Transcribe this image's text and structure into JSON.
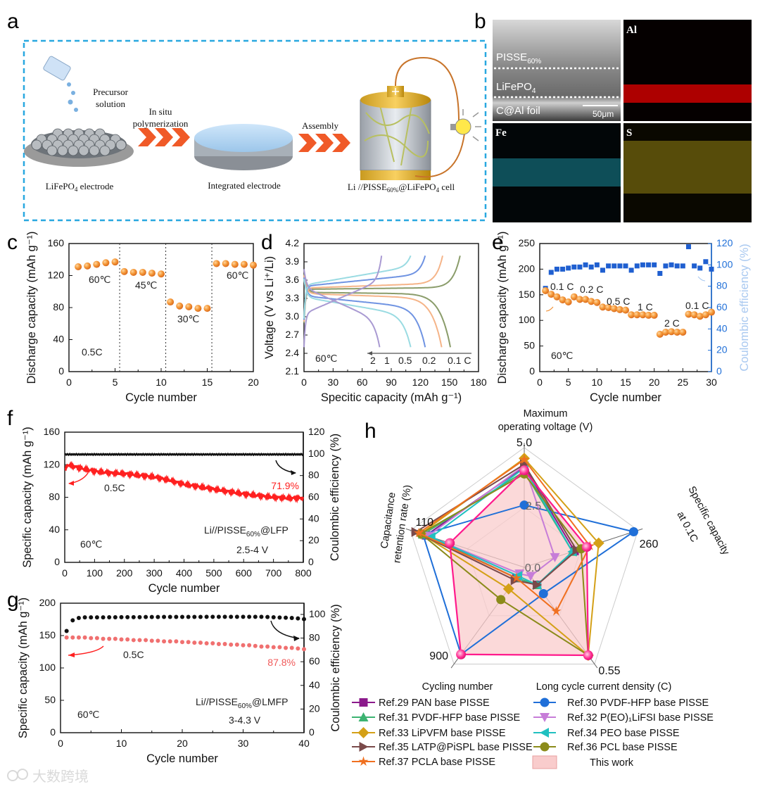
{
  "panel_labels": {
    "a": "a",
    "b": "b",
    "c": "c",
    "d": "d",
    "e": "e",
    "f": "f",
    "g": "g",
    "h": "h"
  },
  "panel_a": {
    "precursor_line1": "Precursor",
    "precursor_line2": "solution",
    "step1_line1": "In situ",
    "step1_line2": "polymerization",
    "step2": "Assembly",
    "electrode_label": {
      "pre": "LiFePO",
      "sub": "4",
      "post": " electrode"
    },
    "integrated_label": "Integrated electrode",
    "cell_label": {
      "pre": "Li //PISSE",
      "sub": "60%",
      "mid": "@LiFePO",
      "sub2": "4",
      "post": " cell"
    },
    "colors": {
      "box": "#29a8e0",
      "arrow": "#f05a28"
    }
  },
  "panel_b": {
    "layer1": {
      "pre": "PISSE",
      "sub": "60%"
    },
    "layer2": {
      "pre": "LiFePO",
      "sub": "4"
    },
    "layer3": "C@Al foil",
    "scale_bar": "50μm",
    "map_al": "Al",
    "map_fe": "Fe",
    "map_s": "S"
  },
  "watermark": "大数跨境",
  "chart_data": [
    {
      "panel": "c",
      "type": "scatter",
      "xlabel": "Cycle number",
      "ylabel": "Discharge capacity (mAh g⁻¹)",
      "xlim": [
        0,
        20
      ],
      "ylim": [
        0,
        160
      ],
      "x_ticks": [
        "0",
        "5",
        "10",
        "15",
        "20"
      ],
      "y_ticks": [
        "0",
        "40",
        "80",
        "120",
        "160"
      ],
      "x": [
        1,
        2,
        3,
        4,
        5,
        6,
        7,
        8,
        9,
        10,
        11,
        12,
        13,
        14,
        15,
        16,
        17,
        18,
        19,
        20
      ],
      "values": [
        131,
        132,
        134,
        136,
        137,
        125,
        124,
        124,
        123,
        122,
        87,
        82,
        81,
        79,
        79,
        135,
        135,
        134,
        134,
        133
      ],
      "dividers": [
        5.5,
        10.5,
        15.5
      ],
      "annotations": {
        "t1": "60℃",
        "t2": "45℃",
        "t3": "30℃",
        "t4": "60℃",
        "rate": "0.5C"
      },
      "color": "#f08a2a"
    },
    {
      "panel": "d",
      "type": "line",
      "xlabel": "Specitic capacity (mAh g⁻¹)",
      "ylabel": "Voltage (V vs Li⁺/Li)",
      "xlim": [
        0,
        180
      ],
      "ylim": [
        2.1,
        4.2
      ],
      "x_ticks": [
        "0",
        "30",
        "60",
        "90",
        "120",
        "150",
        "180"
      ],
      "y_ticks": [
        "2.1",
        "2.4",
        "2.7",
        "3.0",
        "3.3",
        "3.6",
        "3.9",
        "4.2"
      ],
      "series": [
        {
          "name": "0.1 C",
          "color": "#8a9c6a",
          "charge_capacity": 161,
          "discharge_capacity": 151,
          "charge_plateau": 3.45,
          "discharge_plateau": 3.4,
          "slope": 0.03
        },
        {
          "name": "0.2",
          "color": "#f5b488",
          "charge_capacity": 143,
          "discharge_capacity": 142,
          "charge_plateau": 3.47,
          "discharge_plateau": 3.38,
          "slope": 0.08
        },
        {
          "name": "0.5",
          "color": "#6f93e2",
          "charge_capacity": 125,
          "discharge_capacity": 125,
          "charge_plateau": 3.5,
          "discharge_plateau": 3.34,
          "slope": 0.2
        },
        {
          "name": "1",
          "color": "#9adbe2",
          "charge_capacity": 110,
          "discharge_capacity": 110,
          "charge_plateau": 3.52,
          "discharge_plateau": 3.32,
          "slope": 0.3
        },
        {
          "name": "2",
          "color": "#a99ad2",
          "charge_capacity": 80,
          "discharge_capacity": 78,
          "charge_plateau": 3.05,
          "discharge_plateau": 3.48,
          "slope": 0.55
        }
      ],
      "annotations": {
        "temp": "60℃"
      }
    },
    {
      "panel": "e",
      "type": "scatter",
      "xlabel": "Cycle number",
      "ylabel": "Discharge capacity (mAh g⁻¹)",
      "y2label": "Coulombic efficiency (%)",
      "xlim": [
        0,
        30
      ],
      "ylim": [
        0,
        250
      ],
      "y2lim": [
        0,
        120
      ],
      "x_ticks": [
        "0",
        "5",
        "10",
        "15",
        "20",
        "25",
        "30"
      ],
      "y_ticks": [
        "0",
        "50",
        "100",
        "150",
        "200",
        "250"
      ],
      "y2_ticks": [
        "0",
        "20",
        "40",
        "60",
        "80",
        "100",
        "120"
      ],
      "x": [
        1,
        2,
        3,
        4,
        5,
        6,
        7,
        8,
        9,
        10,
        11,
        12,
        13,
        14,
        15,
        16,
        17,
        18,
        19,
        20,
        21,
        22,
        23,
        24,
        25,
        26,
        27,
        28,
        29,
        30
      ],
      "capacity": [
        158,
        151,
        146,
        140,
        136,
        146,
        141,
        141,
        137,
        135,
        126,
        125,
        123,
        121,
        120,
        111,
        111,
        111,
        110,
        110,
        73,
        77,
        78,
        77,
        77,
        112,
        111,
        108,
        111,
        116
      ],
      "efficiency": [
        78,
        93,
        96,
        96,
        97,
        98,
        98,
        100,
        98,
        100,
        95,
        99,
        99,
        99,
        99,
        95,
        99,
        100,
        100,
        100,
        92,
        99,
        100,
        99,
        99,
        117,
        99,
        97,
        103,
        96
      ],
      "annotations": {
        "r1": "0.1 C",
        "r2": "0.2 C",
        "r3": "0.5 C",
        "r4": "1 C",
        "r5": "2 C",
        "r6": "0.1 C",
        "temp": "60℃"
      },
      "colors": {
        "capacity": "#f08a2a",
        "efficiency": "#1f5fd0",
        "y2axis": "#1f6fd8",
        "y2label": "#a8c8f0"
      }
    },
    {
      "panel": "f",
      "type": "line",
      "xlabel": "Cycle number",
      "ylabel": "Specific capacity (mAh g⁻¹)",
      "y2label": "Coulombic efficiency (%)",
      "xlim": [
        0,
        800
      ],
      "ylim": [
        0,
        160
      ],
      "y2lim": [
        0,
        120
      ],
      "x_ticks": [
        "0",
        "100",
        "200",
        "300",
        "400",
        "500",
        "600",
        "700",
        "800"
      ],
      "y_ticks": [
        "0",
        "40",
        "80",
        "120",
        "160"
      ],
      "y2_ticks": [
        "0",
        "20",
        "40",
        "60",
        "80",
        "100",
        "120"
      ],
      "x": [
        0,
        10,
        50,
        100,
        150,
        200,
        250,
        300,
        350,
        400,
        450,
        500,
        550,
        600,
        650,
        700,
        750,
        800
      ],
      "capacity": [
        112,
        120,
        116,
        112,
        110,
        109,
        107,
        105,
        101,
        96,
        93,
        90,
        87,
        84,
        82,
        80,
        79,
        79
      ],
      "efficiency": [
        99.5,
        99.5,
        99.5,
        99.5,
        99.5,
        99.5,
        99.5,
        99.5,
        99.5,
        99.5,
        99.5,
        99.5,
        99.5,
        99.5,
        99.5,
        99.5,
        99.5,
        99.5
      ],
      "annotations": {
        "rate": "0.5C",
        "retention": "71.9%",
        "cell": {
          "pre": "Li//PISSE",
          "sub": "60%",
          "post": "@LFP"
        },
        "voltage": "2.5-4 V",
        "temp": "60℃"
      },
      "colors": {
        "capacity": "#ff2020",
        "efficiency": "#111111"
      }
    },
    {
      "panel": "g",
      "type": "scatter",
      "xlabel": "Cycle number",
      "ylabel": "Specific capacity (mAh g⁻¹)",
      "y2label": "Coulombic efficiency (%)",
      "xlim": [
        0,
        40
      ],
      "ylim": [
        0,
        200
      ],
      "y2lim": [
        0,
        109.5
      ],
      "x_ticks": [
        "0",
        "10",
        "20",
        "30",
        "40"
      ],
      "y_ticks": [
        "0",
        "50",
        "100",
        "150",
        "200"
      ],
      "y2_ticks": [
        "0",
        "20",
        "40",
        "60",
        "80",
        "100"
      ],
      "x": [
        1,
        2,
        3,
        4,
        5,
        6,
        7,
        8,
        9,
        10,
        11,
        12,
        13,
        14,
        15,
        16,
        17,
        18,
        19,
        20,
        21,
        22,
        23,
        24,
        25,
        26,
        27,
        28,
        29,
        30,
        31,
        32,
        33,
        34,
        35,
        36,
        37,
        38,
        39,
        40
      ],
      "capacity": [
        147,
        147,
        147,
        147,
        146,
        146,
        145,
        145,
        145,
        144,
        144,
        143,
        143,
        143,
        142,
        142,
        141,
        141,
        141,
        140,
        140,
        139,
        139,
        138,
        138,
        137,
        137,
        136,
        136,
        135,
        135,
        134,
        133,
        133,
        132,
        132,
        131,
        131,
        130,
        129
      ],
      "efficiency": [
        86,
        95,
        97,
        97.5,
        97.5,
        97.5,
        97.5,
        97.6,
        97.6,
        97.7,
        97.7,
        97.7,
        97.7,
        97.8,
        97.8,
        97.8,
        97.9,
        97.9,
        97.9,
        97.9,
        97.9,
        97.9,
        97.9,
        98,
        98,
        98,
        98,
        98,
        98,
        98,
        98,
        98,
        98,
        97.8,
        97.6,
        97.4,
        97.2,
        97,
        96.6,
        96
      ],
      "annotations": {
        "rate": "0.5C",
        "retention": "87.8%",
        "cell": {
          "pre": "Li//PISSE",
          "sub": "60%",
          "post": "@LMFP"
        },
        "voltage": "3-4.3 V",
        "temp": "60℃"
      },
      "colors": {
        "capacity": "#f07070",
        "efficiency": "#111111"
      }
    },
    {
      "panel": "h",
      "type": "radar",
      "axes": [
        {
          "label1": "Maximum",
          "label2": "operating voltage (V)",
          "max_label": "5.0",
          "mid_label": "2.5",
          "min_label": "0.0",
          "range": [
            0,
            5
          ]
        },
        {
          "label1": "Specific capacity",
          "label2": "at 0.1C",
          "max_label": "260",
          "range": [
            0,
            260
          ]
        },
        {
          "label1": "Long cycle current density (C)",
          "max_label": "0.55",
          "range": [
            0,
            0.55
          ]
        },
        {
          "label1": "Cycling number",
          "max_label": "900",
          "range": [
            0,
            900
          ]
        },
        {
          "label1": "Capacitance",
          "label2": "retention rate (%)",
          "max_label": "110",
          "range": [
            0,
            110
          ]
        }
      ],
      "series": [
        {
          "name": "Ref.29 PAN base PISSE",
          "color": "#8b1a8b",
          "marker": "square",
          "values": [
            4.2,
            115,
            0.1,
            100,
            95
          ]
        },
        {
          "name": "Ref.30 PVDF-HFP base PISSE",
          "color": "#1f6fd8",
          "marker": "circle",
          "values": [
            2.6,
            250,
            0.15,
            810,
            98
          ]
        },
        {
          "name": "Ref.31 PVDF-HFP base PISSE",
          "color": "#3cb371",
          "marker": "triangle-up",
          "values": [
            4.0,
            110,
            0.1,
            100,
            98
          ]
        },
        {
          "name": "Ref.32 P(EO)₁LiFSI base PISSE",
          "color": "#c77dd8",
          "marker": "triangle-down",
          "values": [
            4.25,
            70,
            0.05,
            60,
            93
          ]
        },
        {
          "name": "Ref.33 LiPVFM base PISSE",
          "color": "#d4a017",
          "marker": "diamond",
          "values": [
            4.55,
            170,
            0.5,
            200,
            100
          ]
        },
        {
          "name": "Ref.34 PEO base PISSE",
          "color": "#20c0c0",
          "marker": "triangle-left",
          "values": [
            4.15,
            110,
            0.1,
            80,
            90
          ]
        },
        {
          "name": "Ref.35 LATP@PiSPL base PISSE",
          "color": "#7a4a4a",
          "marker": "triangle-right",
          "values": [
            4.3,
            120,
            0.1,
            120,
            105
          ]
        },
        {
          "name": "Ref.36 PCL base PISSE",
          "color": "#8b8b1a",
          "marker": "circle",
          "values": [
            3.9,
            130,
            0.5,
            300,
            100
          ]
        },
        {
          "name": "Ref.37 PCLA base PISSE",
          "color": "#f07020",
          "marker": "star",
          "values": [
            4.5,
            150,
            0.25,
            100,
            102
          ]
        }
      ],
      "this_work": {
        "name": "This work",
        "color": "#ff1a8c",
        "fill": "#f9cccc",
        "values": [
          4.05,
          143,
          0.5,
          810,
          72
        ]
      }
    }
  ]
}
